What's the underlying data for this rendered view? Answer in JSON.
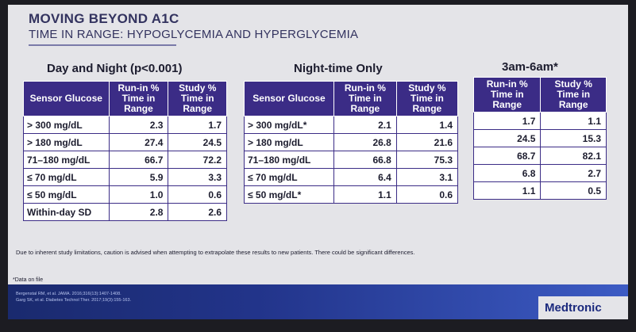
{
  "title": "MOVING BEYOND A1C",
  "subtitle": "TIME IN RANGE: HYPOGLYCEMIA AND HYPERGLYCEMIA",
  "sections": {
    "day_night": "Day and Night (p<0.001)",
    "night_only": "Night-time Only",
    "early_morning": "3am-6am*"
  },
  "headers": {
    "sensor": "Sensor Glucose",
    "runin": "Run-in % Time in Range",
    "study": "Study % Time in Range"
  },
  "table1": [
    {
      "label": "> 300 mg/dL",
      "runin": "2.3",
      "study": "1.7"
    },
    {
      "label": "> 180 mg/dL",
      "runin": "27.4",
      "study": "24.5"
    },
    {
      "label": "71–180 mg/dL",
      "runin": "66.7",
      "study": "72.2"
    },
    {
      "label": "≤ 70 mg/dL",
      "runin": "5.9",
      "study": "3.3"
    },
    {
      "label": "≤ 50 mg/dL",
      "runin": "1.0",
      "study": "0.6"
    },
    {
      "label": "Within-day SD",
      "runin": "2.8",
      "study": "2.6"
    }
  ],
  "table2": [
    {
      "label": "> 300 mg/dL*",
      "runin": "2.1",
      "study": "1.4"
    },
    {
      "label": "> 180 mg/dL",
      "runin": "26.8",
      "study": "21.6"
    },
    {
      "label": "71–180 mg/dL",
      "runin": "66.8",
      "study": "75.3"
    },
    {
      "label": "≤ 70 mg/dL",
      "runin": "6.4",
      "study": "3.1"
    },
    {
      "label": "≤ 50 mg/dL*",
      "runin": "1.1",
      "study": "0.6"
    }
  ],
  "table3": [
    {
      "runin": "1.7",
      "study": "1.1"
    },
    {
      "runin": "24.5",
      "study": "15.3"
    },
    {
      "runin": "68.7",
      "study": "82.1"
    },
    {
      "runin": "6.8",
      "study": "2.7"
    },
    {
      "runin": "1.1",
      "study": "0.5"
    }
  ],
  "note": "Due to inherent study limitations, caution is advised when attempting to extrapolate these results to new patients.  There could be significant differences.",
  "footnote": "*Data on file",
  "citations": [
    "Bergenstal RM, et al. JAMA. 2016;316(13):1407-1408.",
    "Garg SK, et al. Diabetes Technol Ther. 2017;19(3):155-163."
  ],
  "brand": "Medtronic"
}
